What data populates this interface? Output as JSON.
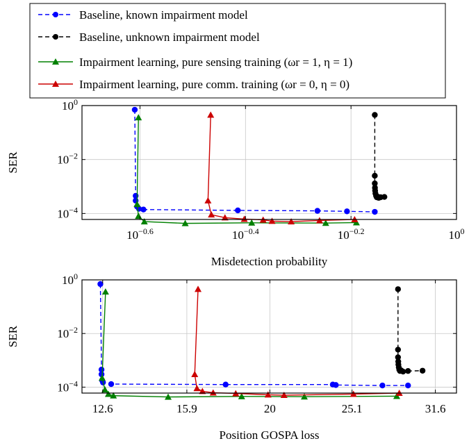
{
  "legend": {
    "entries": [
      {
        "label": "Baseline, known impairment model",
        "color": "#0000ff",
        "dash": true,
        "marker": "circle"
      },
      {
        "label": "Baseline, unknown impairment model",
        "color": "#000000",
        "dash": true,
        "marker": "circle"
      },
      {
        "label": "Impairment learning, pure sensing training (ωr = 1, η = 1)",
        "color": "#008000",
        "dash": false,
        "marker": "triangle"
      },
      {
        "label": "Impairment learning, pure comm. training (ωr = 0, η = 0)",
        "color": "#cc0000",
        "dash": false,
        "marker": "triangle"
      }
    ]
  },
  "chart_data": [
    {
      "type": "line",
      "xlabel": "Misdetection probability",
      "ylabel": "SER",
      "xscale": "log",
      "yscale": "log",
      "xlim": [
        0.195,
        1.0
      ],
      "ylim": [
        6e-05,
        1.0
      ],
      "xticks": [
        {
          "value": 0.2512,
          "label": "10^-0.6"
        },
        {
          "value": 0.3981,
          "label": "10^-0.4"
        },
        {
          "value": 0.631,
          "label": "10^-0.2"
        },
        {
          "value": 1.0,
          "label": "10^0"
        }
      ],
      "yticks": [
        {
          "value": 1.0,
          "label": "10^0"
        },
        {
          "value": 0.01,
          "label": "10^-2"
        },
        {
          "value": 0.0001,
          "label": "10^-4"
        }
      ],
      "grid": true,
      "series": [
        {
          "name": "Baseline, known impairment model",
          "x": [
            0.2455,
            0.2465,
            0.2465,
            0.248,
            0.25,
            0.255,
            0.385,
            0.545,
            0.62,
            0.7
          ],
          "y": [
            0.7,
            0.00045,
            0.0003,
            0.00018,
            0.00015,
            0.00014,
            0.00013,
            0.000125,
            0.00012,
            0.000115
          ]
        },
        {
          "name": "Baseline, unknown impairment model",
          "x": [
            0.7,
            0.7,
            0.7,
            0.7005,
            0.701,
            0.702,
            0.704,
            0.706,
            0.709,
            0.712,
            0.718,
            0.73
          ],
          "y": [
            0.45,
            0.0025,
            0.0013,
            0.0009,
            0.0007,
            0.00055,
            0.00045,
            0.0004,
            0.00042,
            0.00038,
            0.0004,
            0.00041
          ]
        },
        {
          "name": "Impairment learning, pure sensing training (ωr = 1, η = 1)",
          "x": [
            0.2495,
            0.248,
            0.2495,
            0.256,
            0.306,
            0.409,
            0.565,
            0.646
          ],
          "y": [
            0.36,
            0.00022,
            8e-05,
            5e-05,
            4.3e-05,
            4.5e-05,
            4.4e-05,
            4.6e-05
          ]
        },
        {
          "name": "Impairment learning, pure comm. training (ωr = 0, η = 0)",
          "x": [
            0.342,
            0.338,
            0.343,
            0.364,
            0.396,
            0.43,
            0.447,
            0.486,
            0.55,
            0.641
          ],
          "y": [
            0.45,
            0.0003,
            9e-05,
            7e-05,
            6.2e-05,
            5.8e-05,
            5.2e-05,
            5e-05,
            5.5e-05,
            6e-05
          ]
        }
      ]
    },
    {
      "type": "line",
      "xlabel": "Position GOSPA loss",
      "ylabel": "SER",
      "xscale": "log",
      "yscale": "log",
      "xlim": [
        11.9,
        33.5
      ],
      "ylim": [
        6e-05,
        1.0
      ],
      "xticks": [
        {
          "value": 12.6,
          "label": "12.6"
        },
        {
          "value": 15.9,
          "label": "15.9"
        },
        {
          "value": 20,
          "label": "20"
        },
        {
          "value": 25.1,
          "label": "25.1"
        },
        {
          "value": 31.6,
          "label": "31.6"
        }
      ],
      "yticks": [
        {
          "value": 1.0,
          "label": "10^0"
        },
        {
          "value": 0.01,
          "label": "10^-2"
        },
        {
          "value": 0.0001,
          "label": "10^-4"
        }
      ],
      "grid": true,
      "series": [
        {
          "name": "Baseline, known impairment model",
          "x": [
            12.52,
            12.56,
            12.56,
            12.58,
            12.61,
            12.9,
            17.7,
            23.8,
            24.0,
            27.3,
            29.3
          ],
          "y": [
            0.7,
            0.00045,
            0.0003,
            0.00018,
            0.00015,
            0.00013,
            0.000125,
            0.000125,
            0.00012,
            0.000115,
            0.000115
          ]
        },
        {
          "name": "Baseline, unknown impairment model",
          "x": [
            28.5,
            28.5,
            28.5,
            28.52,
            28.53,
            28.56,
            28.6,
            28.66,
            28.75,
            28.9,
            29.3,
            30.5
          ],
          "y": [
            0.45,
            0.0025,
            0.0013,
            0.0009,
            0.0007,
            0.00055,
            0.00045,
            0.0004,
            0.00042,
            0.00038,
            0.0004,
            0.00041
          ]
        },
        {
          "name": "Impairment learning, pure sensing training (ωr = 1, η = 1)",
          "x": [
            12.7,
            12.58,
            12.68,
            12.8,
            12.98,
            15.1,
            18.5,
            22.0,
            28.4
          ],
          "y": [
            0.36,
            0.00022,
            8e-05,
            5.5e-05,
            4.8e-05,
            4.3e-05,
            4.5e-05,
            4.4e-05,
            4.6e-05
          ]
        },
        {
          "name": "Impairment learning, pure comm. training (ωr = 0, η = 0)",
          "x": [
            16.4,
            16.25,
            16.35,
            16.6,
            17.1,
            18.2,
            19.9,
            20.8,
            25.2,
            28.6
          ],
          "y": [
            0.45,
            0.0003,
            9e-05,
            7e-05,
            6.2e-05,
            5.8e-05,
            5.2e-05,
            5e-05,
            5.5e-05,
            6e-05
          ]
        }
      ]
    }
  ]
}
